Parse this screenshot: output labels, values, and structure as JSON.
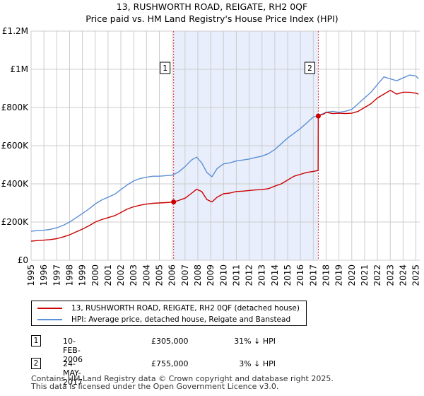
{
  "title": {
    "line1": "13, RUSHWORTH ROAD, REIGATE, RH2 0QF",
    "line2": "Price paid vs. HM Land Registry's House Price Index (HPI)"
  },
  "colors": {
    "property": "#cc0000",
    "hpi": "#5b8fd6",
    "shade": "#e8eefb",
    "grid": "#cccccc",
    "marker_line": "#dd3333"
  },
  "chart_data": {
    "type": "line",
    "title": "13, RUSHWORTH ROAD, REIGATE, RH2 0QF — Price paid vs. HM Land Registry's House Price Index (HPI)",
    "xlim": [
      1995,
      2025.3
    ],
    "ylim": [
      0,
      1200000
    ],
    "y_ticks": [
      0,
      200000,
      400000,
      600000,
      800000,
      1000000,
      1200000
    ],
    "y_tick_labels": [
      "£0",
      "£200K",
      "£400K",
      "£600K",
      "£800K",
      "£1M",
      "£1.2M"
    ],
    "x_ticks": [
      1995,
      1996,
      1997,
      1998,
      1999,
      2000,
      2001,
      2002,
      2003,
      2004,
      2005,
      2006,
      2007,
      2008,
      2009,
      2010,
      2011,
      2012,
      2013,
      2014,
      2015,
      2016,
      2017,
      2018,
      2019,
      2020,
      2021,
      2022,
      2023,
      2024,
      2025
    ],
    "x_tick_labels": [
      "1995",
      "1996",
      "1997",
      "1998",
      "1999",
      "2000",
      "2001",
      "2002",
      "2003",
      "2004",
      "2005",
      "2006",
      "2007",
      "2008",
      "2009",
      "2010",
      "2011",
      "2012",
      "2013",
      "2014",
      "2015",
      "2016",
      "2017",
      "2018",
      "2019",
      "2020",
      "2021",
      "2022",
      "2023",
      "2024",
      "2025"
    ],
    "shaded_range": [
      2006.11,
      2017.39
    ],
    "series": [
      {
        "name": "13, RUSHWORTH ROAD, REIGATE, RH2 0QF (detached house)",
        "color": "#cc0000",
        "x": [
          1995.0,
          1995.5,
          1996.0,
          1996.5,
          1997.0,
          1997.5,
          1998.0,
          1998.5,
          1999.0,
          1999.5,
          2000.0,
          2000.5,
          2001.0,
          2001.5,
          2002.0,
          2002.5,
          2003.0,
          2003.5,
          2004.0,
          2004.5,
          2005.0,
          2005.5,
          2006.11,
          2006.5,
          2007.0,
          2007.5,
          2007.9,
          2008.3,
          2008.7,
          2009.1,
          2009.5,
          2010.0,
          2010.5,
          2011.0,
          2011.5,
          2012.0,
          2012.5,
          2013.0,
          2013.5,
          2014.0,
          2014.5,
          2015.0,
          2015.5,
          2016.0,
          2016.5,
          2017.0,
          2017.38,
          2017.39,
          2017.5,
          2017.8,
          2018.0,
          2018.5,
          2019.0,
          2019.5,
          2020.0,
          2020.5,
          2021.0,
          2021.5,
          2022.0,
          2022.5,
          2023.0,
          2023.5,
          2024.0,
          2024.5,
          2025.0,
          2025.2
        ],
        "values": [
          100000,
          103000,
          105000,
          108000,
          113000,
          122000,
          133000,
          148000,
          163000,
          180000,
          200000,
          213000,
          223000,
          233000,
          250000,
          268000,
          280000,
          288000,
          294000,
          298000,
          300000,
          302000,
          305000,
          313000,
          325000,
          350000,
          372000,
          360000,
          318000,
          305000,
          330000,
          348000,
          352000,
          360000,
          362000,
          365000,
          368000,
          370000,
          375000,
          388000,
          400000,
          420000,
          440000,
          450000,
          460000,
          465000,
          470000,
          755000,
          760000,
          765000,
          775000,
          768000,
          770000,
          768000,
          770000,
          780000,
          800000,
          820000,
          850000,
          870000,
          890000,
          870000,
          880000,
          880000,
          875000,
          870000
        ]
      },
      {
        "name": "HPI: Average price, detached house, Reigate and Banstead",
        "color": "#5b8fd6",
        "x": [
          1995.0,
          1995.5,
          1996.0,
          1996.5,
          1997.0,
          1997.5,
          1998.0,
          1998.5,
          1999.0,
          1999.5,
          2000.0,
          2000.5,
          2001.0,
          2001.5,
          2002.0,
          2002.5,
          2003.0,
          2003.5,
          2004.0,
          2004.5,
          2005.0,
          2005.5,
          2006.0,
          2006.5,
          2007.0,
          2007.5,
          2007.9,
          2008.3,
          2008.7,
          2009.1,
          2009.5,
          2010.0,
          2010.5,
          2011.0,
          2011.5,
          2012.0,
          2012.5,
          2013.0,
          2013.5,
          2014.0,
          2014.5,
          2015.0,
          2015.5,
          2016.0,
          2016.5,
          2017.0,
          2017.5,
          2018.0,
          2018.5,
          2019.0,
          2019.5,
          2020.0,
          2020.5,
          2021.0,
          2021.5,
          2022.0,
          2022.5,
          2023.0,
          2023.5,
          2024.0,
          2024.5,
          2025.0,
          2025.2
        ],
        "values": [
          152000,
          155000,
          157000,
          162000,
          170000,
          183000,
          200000,
          222000,
          245000,
          268000,
          295000,
          315000,
          330000,
          345000,
          370000,
          395000,
          415000,
          428000,
          435000,
          440000,
          440000,
          443000,
          445000,
          462000,
          490000,
          525000,
          540000,
          510000,
          460000,
          437000,
          480000,
          505000,
          510000,
          520000,
          525000,
          530000,
          538000,
          545000,
          558000,
          580000,
          610000,
          640000,
          665000,
          690000,
          720000,
          750000,
          760000,
          775000,
          780000,
          775000,
          780000,
          790000,
          820000,
          850000,
          880000,
          920000,
          960000,
          950000,
          940000,
          955000,
          970000,
          965000,
          950000
        ]
      }
    ],
    "markers": [
      {
        "label": "1",
        "x": 2006.11,
        "value": 305000,
        "date": "10-FEB-2006",
        "price": "£305,000",
        "hpi_text": "31% ↓ HPI"
      },
      {
        "label": "2",
        "x": 2017.39,
        "value": 755000,
        "date": "24-MAY-2017",
        "price": "£755,000",
        "hpi_text": "3% ↓ HPI"
      }
    ]
  },
  "legend": {
    "property_label": "13, RUSHWORTH ROAD, REIGATE, RH2 0QF (detached house)",
    "hpi_label": "HPI: Average price, detached house, Reigate and Banstead"
  },
  "transactions": [
    {
      "num": "1",
      "date": "10-FEB-2006",
      "price": "£305,000",
      "hpi": "31% ↓ HPI"
    },
    {
      "num": "2",
      "date": "24-MAY-2017",
      "price": "£755,000",
      "hpi": "3% ↓ HPI"
    }
  ],
  "footer": {
    "line1": "Contains HM Land Registry data © Crown copyright and database right 2025.",
    "line2": "This data is licensed under the Open Government Licence v3.0."
  }
}
